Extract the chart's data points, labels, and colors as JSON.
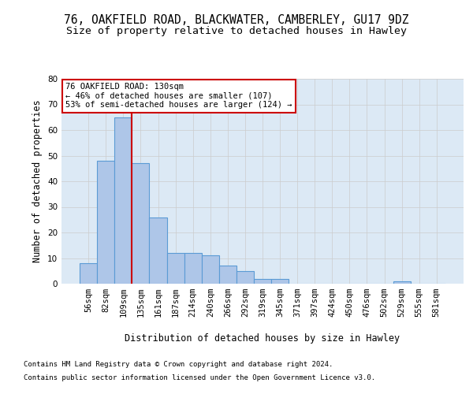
{
  "title_line1": "76, OAKFIELD ROAD, BLACKWATER, CAMBERLEY, GU17 9DZ",
  "title_line2": "Size of property relative to detached houses in Hawley",
  "xlabel": "Distribution of detached houses by size in Hawley",
  "ylabel": "Number of detached properties",
  "categories": [
    "56sqm",
    "82sqm",
    "109sqm",
    "135sqm",
    "161sqm",
    "187sqm",
    "214sqm",
    "240sqm",
    "266sqm",
    "292sqm",
    "319sqm",
    "345sqm",
    "371sqm",
    "397sqm",
    "424sqm",
    "450sqm",
    "476sqm",
    "502sqm",
    "529sqm",
    "555sqm",
    "581sqm"
  ],
  "values": [
    8,
    48,
    65,
    47,
    26,
    12,
    12,
    11,
    7,
    5,
    2,
    2,
    0,
    0,
    0,
    0,
    0,
    0,
    1,
    0,
    0
  ],
  "bar_color": "#aec6e8",
  "bar_edge_color": "#5b9bd5",
  "bar_edge_width": 0.8,
  "red_line_index": 2,
  "red_line_color": "#cc0000",
  "annotation_line1": "76 OAKFIELD ROAD: 130sqm",
  "annotation_line2": "← 46% of detached houses are smaller (107)",
  "annotation_line3": "53% of semi-detached houses are larger (124) →",
  "annotation_box_color": "#ffffff",
  "annotation_box_edge": "#cc0000",
  "ylim": [
    0,
    80
  ],
  "yticks": [
    0,
    10,
    20,
    30,
    40,
    50,
    60,
    70,
    80
  ],
  "grid_color": "#cccccc",
  "bg_color": "#dce9f5",
  "footer_line1": "Contains HM Land Registry data © Crown copyright and database right 2024.",
  "footer_line2": "Contains public sector information licensed under the Open Government Licence v3.0.",
  "title_fontsize": 10.5,
  "subtitle_fontsize": 9.5,
  "axis_label_fontsize": 8.5,
  "tick_fontsize": 7.5,
  "annotation_fontsize": 7.5,
  "footer_fontsize": 6.5
}
